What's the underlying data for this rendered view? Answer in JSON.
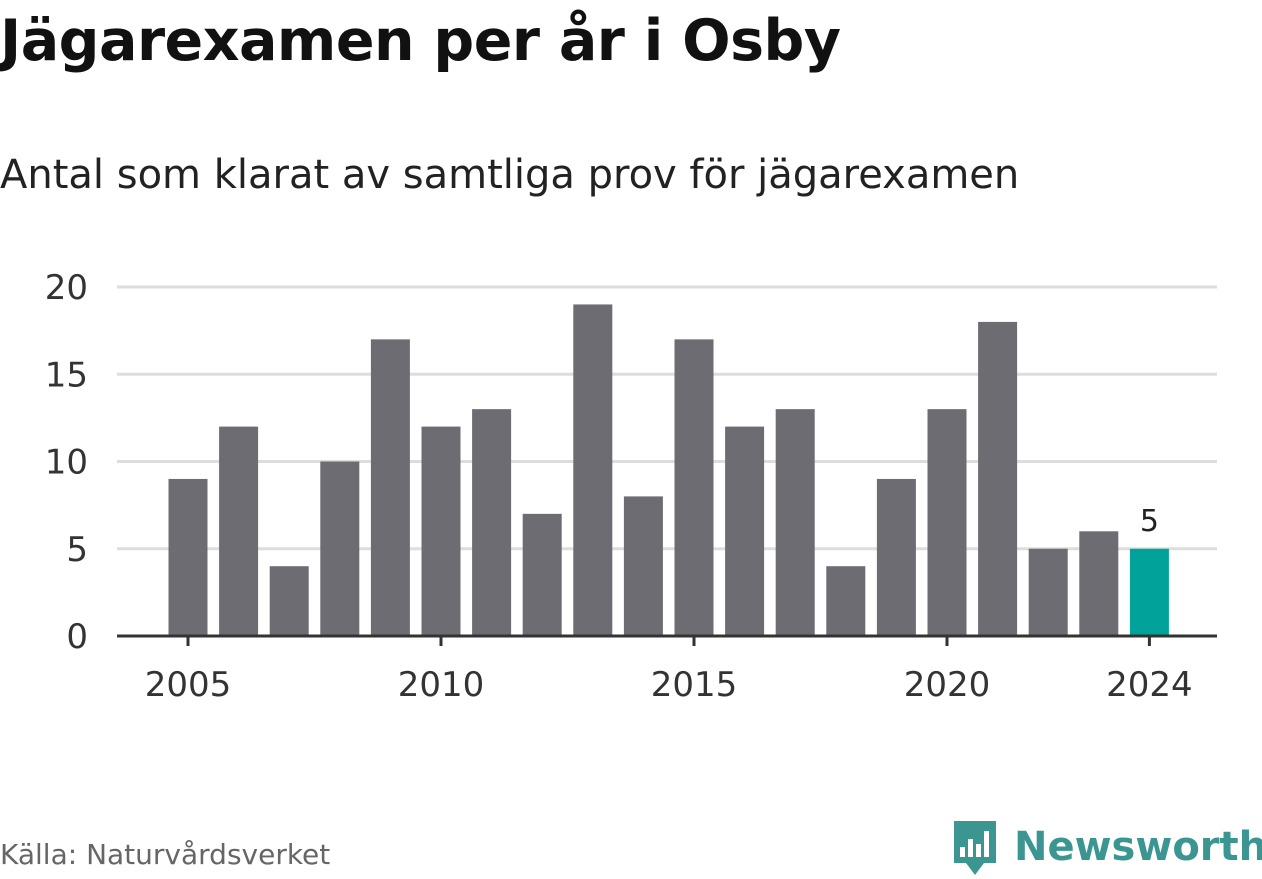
{
  "header": {
    "title": "Jägarexamen per år i Osby",
    "subtitle": "Antal som klarat av samtliga prov för jägarexamen"
  },
  "footer": {
    "source": "Källa: Naturvårdsverket",
    "brand": "Newsworthy",
    "brand_icon": "newsworthy-logo-icon"
  },
  "colors": {
    "bar": "#6d6c72",
    "highlight": "#00a29a",
    "grid": "#dddddd",
    "axis": "#333333",
    "brand": "#3b9691"
  },
  "chart_data": {
    "type": "bar",
    "x": [
      2005,
      2006,
      2007,
      2008,
      2009,
      2010,
      2011,
      2012,
      2013,
      2014,
      2015,
      2016,
      2017,
      2018,
      2019,
      2020,
      2021,
      2022,
      2023,
      2024
    ],
    "values": [
      9,
      12,
      4,
      10,
      17,
      12,
      13,
      7,
      19,
      8,
      17,
      12,
      13,
      4,
      9,
      13,
      18,
      5,
      6,
      5
    ],
    "highlight_x": 2024,
    "data_labels": [
      {
        "x": 2024,
        "label": "5"
      }
    ],
    "xticks": [
      2005,
      2010,
      2015,
      2020,
      2024
    ],
    "xtick_labels": [
      "2005",
      "2010",
      "2015",
      "2020",
      "2024"
    ],
    "yticks": [
      0,
      5,
      10,
      15,
      20
    ],
    "ytick_labels": [
      "0",
      "5",
      "10",
      "15",
      "20"
    ],
    "ylim": [
      0,
      20
    ],
    "grid": true
  }
}
